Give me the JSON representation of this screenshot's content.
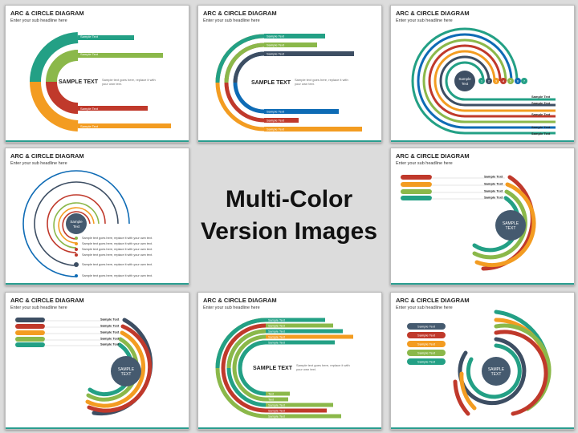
{
  "slide_title": "ARC & CIRCLE DIAGRAM",
  "slide_subtitle": "Enter your sub headline here",
  "center_heading": [
    "Multi-Color",
    "Version Images"
  ],
  "sample_text": "Sample Text",
  "sample_text_caps": "SAMPLE TEXT",
  "sample_center_lines": [
    "Sample",
    "Text"
  ],
  "sample_center_caps_lines": [
    "SAMPLE",
    "TEXT"
  ],
  "body_text_lines": [
    "Sample text goes here, replace it with",
    "your own text."
  ],
  "bullet_text": "Sample text goes here, replace it with your own text.",
  "numbers": [
    "1",
    "2",
    "3",
    "4",
    "5",
    "6",
    "7"
  ],
  "short_text": "Text",
  "colors": {
    "teal": "#23a085",
    "green": "#8bb84a",
    "red": "#c0392b",
    "orange": "#f39c21",
    "navy": "#3d4e63",
    "blue": "#0e6bb5",
    "yellow": "#e8b21a",
    "slate": "#455a6f",
    "accent": "#2a9d8f"
  }
}
